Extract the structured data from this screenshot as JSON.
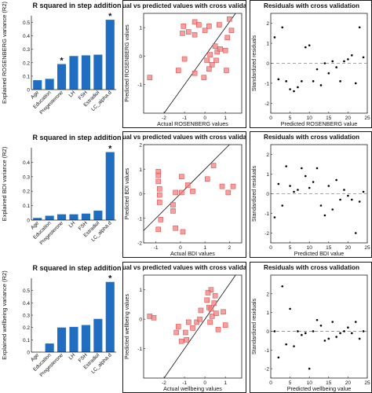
{
  "chart_data": [
    {
      "type": "bar",
      "title": "R squared in step addition",
      "ylabel": "Explained ROSENBERG variance (R2)",
      "ylim": [
        0,
        0.55
      ],
      "yticks": [
        0,
        0.1,
        0.2,
        0.3,
        0.4,
        0.5
      ],
      "categories": [
        "Age",
        "Education",
        "Progesterone",
        "LH",
        "FSH",
        "Estradiol",
        "LC_alpha.d"
      ],
      "values": [
        0.07,
        0.08,
        0.19,
        0.25,
        0.255,
        0.26,
        0.52
      ],
      "stars": [
        false,
        false,
        true,
        false,
        false,
        false,
        true
      ],
      "star_label": "*",
      "color": "#1f6ec2",
      "grid": false
    },
    {
      "type": "scatter",
      "title": "Actual vs predicted values with cross validation",
      "xlabel": "Actual ROSENBERG values",
      "ylabel": "Predicted ROSENBERG values",
      "xlim": [
        -3,
        1.8
      ],
      "ylim": [
        -2,
        1.5
      ],
      "xticks": [
        -2,
        -1,
        0,
        1
      ],
      "yticks": [
        -1,
        0,
        1
      ],
      "identity_line": true,
      "marker_color": "#f08080",
      "points": [
        [
          -1.05,
          1.05
        ],
        [
          -1.1,
          0.8
        ],
        [
          -0.8,
          0.85
        ],
        [
          -0.5,
          1.2
        ],
        [
          -0.5,
          0.75
        ],
        [
          -0.3,
          1.1
        ],
        [
          0.2,
          1.05
        ],
        [
          0.0,
          0.9
        ],
        [
          0.7,
          1.1
        ],
        [
          1.2,
          1.3
        ],
        [
          1.3,
          0.9
        ],
        [
          -2.7,
          -0.75
        ],
        [
          -1.0,
          -0.1
        ],
        [
          -1.3,
          -0.5
        ],
        [
          -0.5,
          -0.6
        ],
        [
          -0.05,
          -0.75
        ],
        [
          0.1,
          -0.15
        ],
        [
          0.25,
          0.05
        ],
        [
          0.35,
          -0.3
        ],
        [
          0.55,
          -0.15
        ],
        [
          0.2,
          -0.45
        ],
        [
          0.6,
          0.15
        ],
        [
          0.75,
          0.25
        ],
        [
          1.0,
          0.2
        ],
        [
          1.1,
          0.65
        ],
        [
          1.05,
          -0.5
        ],
        [
          0.5,
          0.35
        ]
      ]
    },
    {
      "type": "scatter",
      "title": "Residuals with cross validation",
      "xlabel": "Predicted ROSENBERG value",
      "ylabel": "Standardized residuals",
      "xlim": [
        0,
        25
      ],
      "ylim": [
        -2.5,
        2.5
      ],
      "xticks": [
        0,
        5,
        10,
        15,
        20,
        25
      ],
      "yticks": [
        -2,
        -1,
        0,
        1,
        2
      ],
      "zero_line": true,
      "marker_color": "#000000",
      "points": [
        [
          1,
          1.3
        ],
        [
          2,
          -0.8
        ],
        [
          3,
          1.8
        ],
        [
          4,
          -0.9
        ],
        [
          5,
          -1.3
        ],
        [
          6,
          -1.4
        ],
        [
          7,
          -1.2
        ],
        [
          8,
          -0.9
        ],
        [
          9,
          0.8
        ],
        [
          10,
          0.9
        ],
        [
          11,
          -0.9
        ],
        [
          12,
          -0.3
        ],
        [
          13,
          -1.1
        ],
        [
          14,
          0.0
        ],
        [
          15,
          -0.5
        ],
        [
          16,
          0.1
        ],
        [
          17,
          -0.2
        ],
        [
          18,
          -0.9
        ],
        [
          19,
          0.1
        ],
        [
          20,
          0.2
        ],
        [
          21,
          0.4
        ],
        [
          22,
          -1.0
        ],
        [
          23,
          1.8
        ],
        [
          24,
          0.3
        ]
      ]
    },
    {
      "type": "bar",
      "title": "R squared in step addition",
      "ylabel": "Explained BDI variance (R2)",
      "ylim": [
        0,
        0.5
      ],
      "yticks": [
        0,
        0.1,
        0.2,
        0.3,
        0.4
      ],
      "categories": [
        "Age",
        "Education",
        "Progesterone",
        "LH",
        "FSH",
        "Estradiol",
        "LC_alpha.d"
      ],
      "values": [
        0.015,
        0.03,
        0.04,
        0.04,
        0.045,
        0.065,
        0.47
      ],
      "stars": [
        false,
        false,
        false,
        false,
        false,
        false,
        true
      ],
      "star_label": "*",
      "color": "#1f6ec2",
      "grid": false
    },
    {
      "type": "scatter",
      "title": "Actual vs predicted values with cross validation",
      "xlabel": "Actual BDI values",
      "ylabel": "Predicted BDI values",
      "xlim": [
        -1.5,
        2.5
      ],
      "ylim": [
        -2,
        2
      ],
      "xticks": [
        -1,
        0,
        1,
        2
      ],
      "yticks": [
        -2,
        -1,
        0,
        1,
        2
      ],
      "identity_line": true,
      "marker_color": "#f08080",
      "points": [
        [
          -0.9,
          0.9
        ],
        [
          -0.9,
          0.75
        ],
        [
          -0.85,
          0.2
        ],
        [
          -0.9,
          0.5
        ],
        [
          -0.85,
          -0.05
        ],
        [
          -0.85,
          -0.35
        ],
        [
          -0.8,
          -1.05
        ],
        [
          -0.3,
          -0.45
        ],
        [
          -0.2,
          0.05
        ],
        [
          0.05,
          0.05
        ],
        [
          0.3,
          0.35
        ],
        [
          0.05,
          0.7
        ],
        [
          1.35,
          1.15
        ],
        [
          1.7,
          0.3
        ],
        [
          1.95,
          0.05
        ],
        [
          2.15,
          0.3
        ],
        [
          -0.3,
          -0.7
        ],
        [
          -0.2,
          -1.4
        ],
        [
          0.5,
          0.1
        ],
        [
          1.1,
          0.6
        ],
        [
          -0.9,
          -1.45
        ],
        [
          0.1,
          -1.55
        ]
      ]
    },
    {
      "type": "scatter",
      "title": "Residuals with cross validation",
      "xlabel": "Predicted BDI value",
      "ylabel": "Standardized residuals",
      "xlim": [
        0,
        25
      ],
      "ylim": [
        -2.5,
        2.5
      ],
      "xticks": [
        0,
        5,
        10,
        15,
        20,
        25
      ],
      "yticks": [
        -2,
        -1,
        0,
        1,
        2
      ],
      "zero_line": true,
      "marker_color": "#000000",
      "points": [
        [
          1,
          -1.2
        ],
        [
          2,
          0.5
        ],
        [
          3,
          -0.6
        ],
        [
          4,
          1.4
        ],
        [
          5,
          0.4
        ],
        [
          6,
          0.1
        ],
        [
          7,
          0.2
        ],
        [
          8,
          1.3
        ],
        [
          9,
          0.9
        ],
        [
          10,
          0.3
        ],
        [
          11,
          0.6
        ],
        [
          12,
          1.3
        ],
        [
          13,
          -0.6
        ],
        [
          14,
          -1.1
        ],
        [
          15,
          0.4
        ],
        [
          16,
          -0.8
        ],
        [
          17,
          0.7
        ],
        [
          18,
          -0.3
        ],
        [
          19,
          0.2
        ],
        [
          20,
          -0.1
        ],
        [
          21,
          -0.3
        ],
        [
          22,
          -2.0
        ],
        [
          23,
          -0.4
        ],
        [
          24,
          0.1
        ]
      ]
    },
    {
      "type": "bar",
      "title": "R squared in step addition",
      "ylabel": "Explained wellbeing variance (R2)",
      "ylim": [
        0,
        0.6
      ],
      "yticks": [
        0,
        0.1,
        0.2,
        0.3,
        0.4,
        0.5
      ],
      "categories": [
        "Age",
        "Education",
        "Progesterone",
        "LH",
        "FSH",
        "Estradiol",
        "LC_alpha.d"
      ],
      "values": [
        0.002,
        0.07,
        0.2,
        0.205,
        0.22,
        0.27,
        0.57
      ],
      "stars": [
        false,
        false,
        false,
        false,
        false,
        false,
        true
      ],
      "star_label": "*",
      "color": "#1f6ec2",
      "grid": false
    },
    {
      "type": "scatter",
      "title": "Actual vs predicted values with cross validation",
      "xlabel": "Actual wellbeing values",
      "ylabel": "Predicted wellbeing values",
      "xlim": [
        -3,
        1.8
      ],
      "ylim": [
        -2,
        1.5
      ],
      "xticks": [
        -2,
        -1,
        0,
        1
      ],
      "yticks": [
        -1,
        0,
        1
      ],
      "identity_line": true,
      "marker_color": "#f08080",
      "points": [
        [
          -2.7,
          0.1
        ],
        [
          -2.5,
          0.05
        ],
        [
          -1.4,
          -0.45
        ],
        [
          -1.3,
          -0.25
        ],
        [
          -1.15,
          -0.75
        ],
        [
          -0.9,
          -0.7
        ],
        [
          -0.95,
          -0.45
        ],
        [
          -0.6,
          -0.3
        ],
        [
          -0.8,
          -0.1
        ],
        [
          -0.4,
          -0.1
        ],
        [
          -0.25,
          0.0
        ],
        [
          -0.2,
          0.3
        ],
        [
          0.1,
          0.65
        ],
        [
          0.2,
          0.4
        ],
        [
          0.3,
          0.35
        ],
        [
          0.35,
          0.1
        ],
        [
          0.25,
          -0.1
        ],
        [
          0.45,
          0.55
        ],
        [
          0.55,
          0.2
        ],
        [
          0.3,
          1.0
        ],
        [
          0.15,
          0.9
        ],
        [
          0.5,
          0.8
        ],
        [
          0.9,
          0.25
        ],
        [
          1.0,
          -0.2
        ],
        [
          0.65,
          -0.35
        ]
      ]
    },
    {
      "type": "scatter",
      "title": "Residuals with cross validation",
      "xlabel": "Predicted wellbeing value",
      "ylabel": "Standardized residuals",
      "xlim": [
        0,
        25
      ],
      "ylim": [
        -2.5,
        3
      ],
      "xticks": [
        0,
        5,
        10,
        15,
        20,
        25
      ],
      "yticks": [
        -2,
        -1,
        0,
        1,
        2
      ],
      "zero_line": true,
      "marker_color": "#000000",
      "points": [
        [
          1,
          0.0
        ],
        [
          2,
          -1.4
        ],
        [
          3,
          2.4
        ],
        [
          4,
          -0.7
        ],
        [
          5,
          1.2
        ],
        [
          6,
          -0.8
        ],
        [
          7,
          0.0
        ],
        [
          8,
          -0.2
        ],
        [
          9,
          -0.1
        ],
        [
          10,
          -2.0
        ],
        [
          11,
          0.0
        ],
        [
          12,
          0.6
        ],
        [
          13,
          0.3
        ],
        [
          14,
          -0.5
        ],
        [
          15,
          -0.4
        ],
        [
          16,
          0.5
        ],
        [
          17,
          -0.3
        ],
        [
          18,
          -0.1
        ],
        [
          19,
          0.0
        ],
        [
          20,
          0.2
        ],
        [
          21,
          -0.1
        ],
        [
          22,
          0.5
        ],
        [
          23,
          -0.4
        ],
        [
          24,
          0.0
        ]
      ]
    }
  ]
}
